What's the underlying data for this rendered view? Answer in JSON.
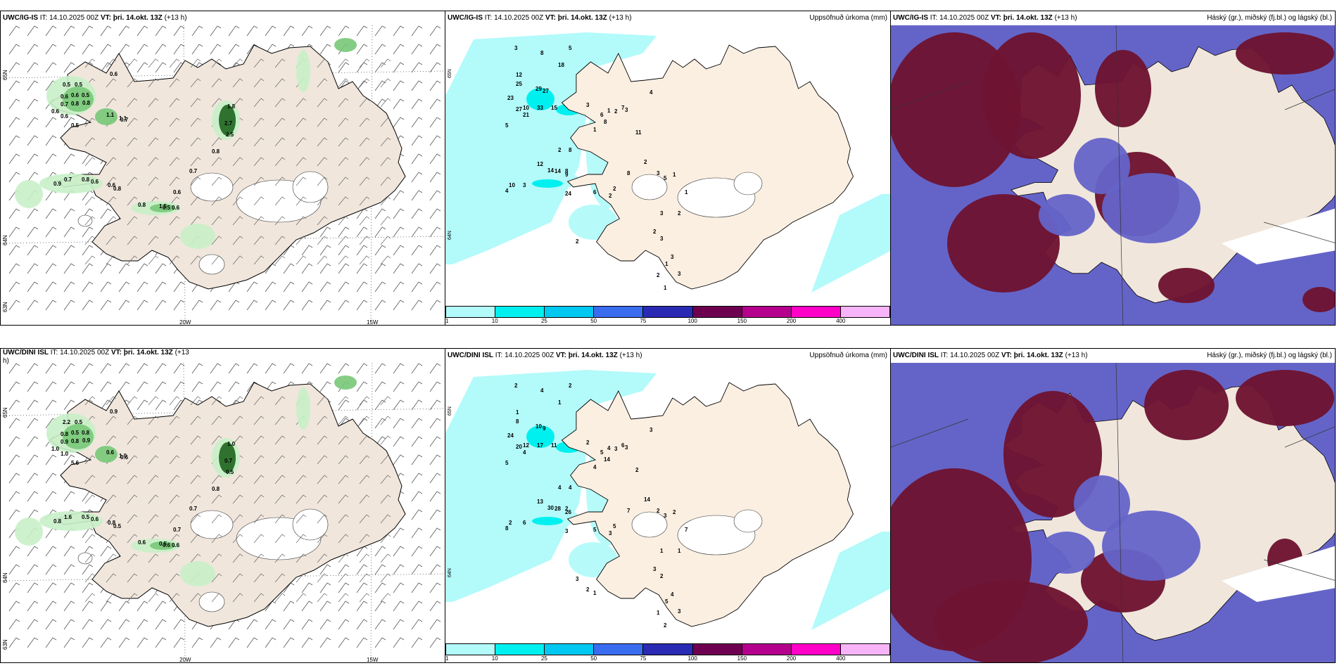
{
  "top_row": {
    "wind_panel": {
      "model": "UWC/IG-IS",
      "it_label": "IT:",
      "it_value": "14.10.2025 00Z",
      "vt_label": "VT:",
      "vt_value": "þri. 14.okt. 13Z",
      "lead": "(+13 h)",
      "lat_labels": [
        "65N",
        "64N",
        "63N"
      ],
      "lon_labels": [
        "20W",
        "15W"
      ],
      "precip_values": [
        "0.6",
        "0.5",
        "0.5",
        "0.6",
        "0.6",
        "0.7",
        "0.5",
        "0.8",
        "0.8",
        "0.6",
        "0.6",
        "1.1",
        "1.1",
        "0.7",
        "0.5",
        "1.8",
        "2.7",
        "2.5",
        "0.8",
        "0.7",
        "0.9",
        "0.7",
        "0.8",
        "0.6",
        "0.6",
        "0.8",
        "0.6",
        "0.8",
        "1.5",
        "0.6",
        "0.5"
      ]
    },
    "precip_panel": {
      "model": "UWC/IG-IS",
      "it_label": "IT:",
      "it_value": "14.10.2025 00Z",
      "vt_label": "VT:",
      "vt_value": "þri. 14.okt. 13Z",
      "lead": "(+13 h)",
      "right_title": "Uppsöfnuð úrkoma (mm)",
      "lat_labels": [
        "65N",
        "64N"
      ],
      "values": [
        "3",
        "5",
        "8",
        "18",
        "12",
        "25",
        "29",
        "27",
        "15",
        "33",
        "10",
        "23",
        "27",
        "21",
        "3",
        "4",
        "5",
        "6",
        "1",
        "2",
        "7",
        "11",
        "1",
        "3",
        "8",
        "12",
        "2",
        "8",
        "8",
        "14",
        "14",
        "9",
        "10",
        "3",
        "4",
        "24",
        "2",
        "2",
        "6",
        "8",
        "2",
        "3",
        "5",
        "1",
        "1",
        "2",
        "3",
        "3",
        "2",
        "3",
        "3",
        "1",
        "2",
        "1",
        "2"
      ]
    },
    "cloud_panel": {
      "model": "UWC/IG-IS",
      "it_label": "IT:",
      "it_value": "14.10.2025 00Z",
      "vt_label": "VT:",
      "vt_value": "þri. 14.okt. 13Z",
      "lead": "(+13 h)",
      "right_title": "Háský (gr.), miðský (fj.bl.) og lágský (bl.)"
    }
  },
  "bottom_row": {
    "wind_panel": {
      "model": "UWC/DINI ISL",
      "it_label": "IT:",
      "it_value": "14.10.2025 00Z",
      "vt_label": "VT:",
      "vt_value": "þri. 14.okt. 13Z",
      "lead": "(+13",
      "lead2": "h)",
      "lat_labels": [
        "65N",
        "64N",
        "63N"
      ],
      "lon_labels": [
        "20W",
        "15W"
      ],
      "precip_values": [
        "0.9",
        "2.2",
        "0.5",
        "0.8",
        "0.5",
        "0.9",
        "0.8",
        "0.8",
        "0.9",
        "1.0",
        "1.0",
        "0.6",
        "1.0",
        "0.6",
        "5.6",
        "1.0",
        "0.7",
        "0.5",
        "0.8",
        "0.7",
        "0.8",
        "1.6",
        "0.5",
        "0.6",
        "0.8",
        "0.5",
        "0.7",
        "0.6",
        "0.5",
        "0.6",
        "0.6"
      ]
    },
    "precip_panel": {
      "model": "UWC/DINI ISL",
      "it_label": "IT:",
      "it_value": "14.10.2025 00Z",
      "vt_label": "VT:",
      "vt_value": "þri. 14.okt. 13Z",
      "lead": "(+13 h)",
      "right_title": "Uppsöfnuð úrkoma (mm)",
      "lat_labels": [
        "65N",
        "64N"
      ],
      "values": [
        "2",
        "2",
        "4",
        "1",
        "1",
        "8",
        "10",
        "9",
        "11",
        "17",
        "12",
        "24",
        "20",
        "4",
        "2",
        "3",
        "5",
        "5",
        "4",
        "3",
        "6",
        "2",
        "4",
        "3",
        "14",
        "13",
        "4",
        "4",
        "2",
        "28",
        "30",
        "26",
        "2",
        "6",
        "8",
        "3",
        "3",
        "5",
        "5",
        "7",
        "14",
        "2",
        "3",
        "2",
        "7",
        "1",
        "1",
        "2",
        "3",
        "3",
        "4",
        "5",
        "1",
        "2",
        "3",
        "2",
        "1"
      ]
    },
    "cloud_panel": {
      "model": "UWC/DINI ISL",
      "it_label": "IT:",
      "it_value": "14.10.2025 00Z",
      "vt_label": "VT:",
      "vt_value": "þri. 14.okt. 13Z",
      "lead": "(+13 h)",
      "right_title": "Háský (gr.), miðský (fj.bl.) og lágský (bl.)"
    }
  },
  "colorbar": {
    "labels": [
      "1",
      "10",
      "25",
      "50",
      "75",
      "100",
      "150",
      "200",
      "400"
    ],
    "colors": [
      "#b3fafa",
      "#00f0f0",
      "#00c8f0",
      "#3a6cf0",
      "#2a2ab4",
      "#6e0050",
      "#b4008c",
      "#ff00c8",
      "#f8b4f8"
    ]
  },
  "map_colors": {
    "land": "#f0e6dc",
    "sea": "#ffffff",
    "precip_light": "#c8f0c8",
    "precip_mid": "#78c878",
    "precip_dark": "#1e641e",
    "high_cloud": "#6e1432",
    "mid_cloud": "#6464c8",
    "low_cloud": "#8c2846"
  }
}
